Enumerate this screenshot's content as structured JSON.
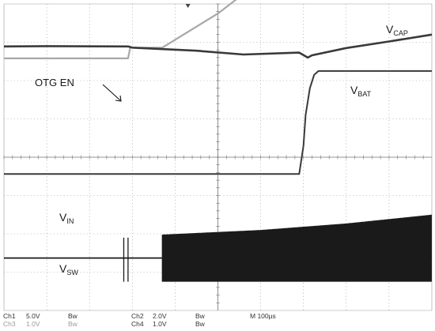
{
  "chart_data": {
    "type": "line",
    "title": "",
    "xlabel": "",
    "ylabel": "",
    "grid": true,
    "divisions": {
      "x": 10,
      "y": 8
    },
    "x_unit_per_div": "100µs",
    "xlim": [
      0,
      1000
    ],
    "annotation": "OTG EN",
    "series": [
      {
        "name": "V",
        "name_sub": "CAP",
        "color": "#a8a8a8",
        "x": [
          0,
          290,
          295,
          370,
          500,
          640,
          690,
          700,
          705,
          710,
          720,
          1000
        ],
        "y": [
          2.58,
          2.58,
          2.86,
          2.86,
          3.75,
          4.95,
          5.3,
          5.62,
          5.45,
          5.7,
          5.71,
          5.66
        ]
      },
      {
        "name": "V",
        "name_sub": "BAT",
        "color": "#3a3a3a",
        "x": [
          0,
          100,
          290,
          300,
          450,
          560,
          690,
          710,
          720,
          800,
          900,
          1000
        ],
        "y": [
          2.89,
          2.9,
          2.89,
          2.86,
          2.78,
          2.68,
          2.73,
          2.6,
          2.66,
          2.85,
          3.02,
          3.2
        ]
      },
      {
        "name": "V",
        "name_sub": "IN",
        "color": "#3a3a3a",
        "x": [
          0,
          690,
          700,
          705,
          715,
          725,
          735,
          1000
        ],
        "y": [
          -0.44,
          -0.44,
          0.3,
          1.1,
          1.8,
          2.15,
          2.25,
          2.25
        ]
      },
      {
        "name": "V",
        "name_sub": "SW",
        "color": "#1a1a1a",
        "x": [
          0,
          280,
          370,
          430,
          1000
        ],
        "y": [
          -2.63,
          -2.63,
          -2.63,
          -2.6,
          -2.6
        ],
        "switching_envelope": {
          "x": [
            370,
            600,
            800,
            1000
          ],
          "y": [
            -2.02,
            -1.9,
            -1.73,
            -1.5
          ],
          "low": -3.25
        }
      }
    ]
  },
  "status_bar": {
    "row1": [
      {
        "text": "Ch1",
        "dim": false
      },
      {
        "text": "5.0V",
        "dim": false
      },
      {
        "text": "Bw",
        "dim": false
      },
      {
        "text": "Ch2",
        "dim": false
      },
      {
        "text": "2.0V",
        "dim": false
      },
      {
        "text": "Bw",
        "dim": false
      },
      {
        "text": "M 100µs",
        "dim": false
      }
    ],
    "row2": [
      {
        "text": "Ch3",
        "dim": true
      },
      {
        "text": "1.0V",
        "dim": true
      },
      {
        "text": "Bw",
        "dim": true
      },
      {
        "text": "Ch4",
        "dim": false
      },
      {
        "text": "1.0V",
        "dim": false
      },
      {
        "text": "Bw",
        "dim": false
      }
    ]
  }
}
